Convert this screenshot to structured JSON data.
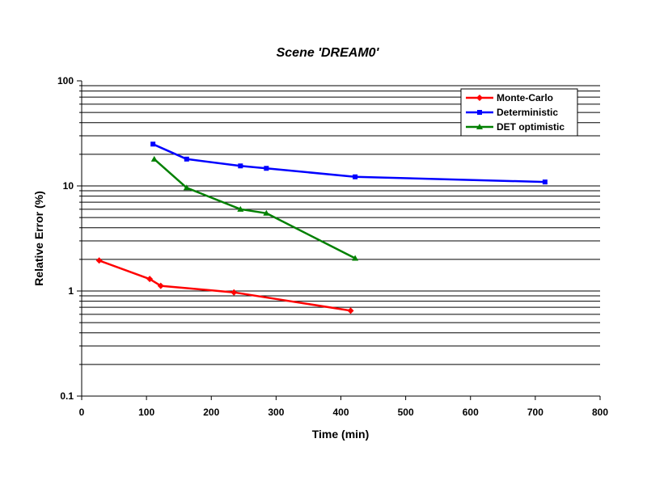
{
  "chart_data": {
    "type": "line",
    "title": "Scene  'DREAM0'",
    "xlabel": "Time (min)",
    "ylabel": "Relative Error (%)",
    "xlim": [
      0,
      800
    ],
    "ylim": [
      0.1,
      100
    ],
    "yscale": "log",
    "x_ticks": [
      0,
      100,
      200,
      300,
      400,
      500,
      600,
      700,
      800
    ],
    "y_ticks": [
      0.1,
      1,
      10,
      100
    ],
    "y_tick_labels": [
      "0.1",
      "1",
      "10",
      "100"
    ],
    "grid": "horizontal",
    "legend_position": "top-right",
    "series": [
      {
        "name": "Monte-Carlo",
        "color": "#ff0000",
        "marker": "diamond",
        "points": [
          [
            27,
            1.95
          ],
          [
            105,
            1.3
          ],
          [
            122,
            1.12
          ],
          [
            235,
            0.97
          ],
          [
            415,
            0.65
          ]
        ]
      },
      {
        "name": "Deterministic",
        "color": "#0000ff",
        "marker": "square",
        "points": [
          [
            110,
            25
          ],
          [
            162,
            18
          ],
          [
            245,
            15.5
          ],
          [
            285,
            14.7
          ],
          [
            422,
            12.2
          ],
          [
            715,
            10.9
          ]
        ]
      },
      {
        "name": "DET optimistic",
        "color": "#008000",
        "marker": "triangle",
        "points": [
          [
            112,
            18
          ],
          [
            162,
            9.6
          ],
          [
            245,
            6.0
          ],
          [
            285,
            5.5
          ],
          [
            422,
            2.05
          ]
        ]
      }
    ]
  }
}
